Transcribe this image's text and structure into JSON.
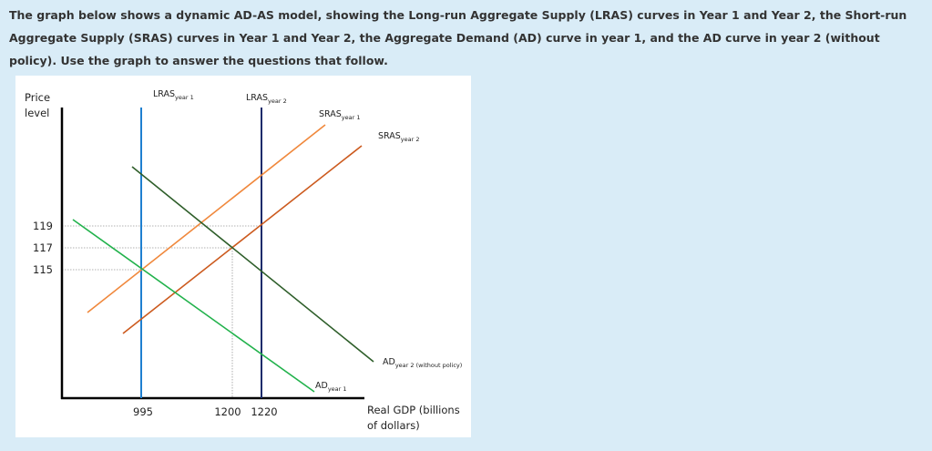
{
  "question": "The graph below shows a dynamic AD-AS model, showing the Long-run Aggregate Supply (LRAS) curves in Year 1 and Year 2, the Short-run Aggregate Supply (SRAS) curves in Year 1 and Year 2, the Aggregate Demand (AD) curve in year 1, and the AD curve in year 2 (without policy). Use the graph to answer the questions that follow.",
  "graph": {
    "y_axis_label": [
      "Price",
      "level"
    ],
    "y_ticks": [
      119,
      117,
      115
    ],
    "x_ticks": [
      995,
      1200,
      1220
    ],
    "x_axis_label": [
      "Real GDP (billions",
      "of dollars)"
    ],
    "curves": {
      "lras1": {
        "name": "LRAS",
        "sub": "year 1"
      },
      "lras2": {
        "name": "LRAS",
        "sub": "year 2"
      },
      "sras1": {
        "name": "SRAS",
        "sub": "year 1"
      },
      "sras2": {
        "name": "SRAS",
        "sub": "year 2"
      },
      "ad1": {
        "name": "AD",
        "sub": "year 1"
      },
      "ad2": {
        "name": "AD",
        "sub": "year 2 (without policy)"
      }
    }
  }
}
